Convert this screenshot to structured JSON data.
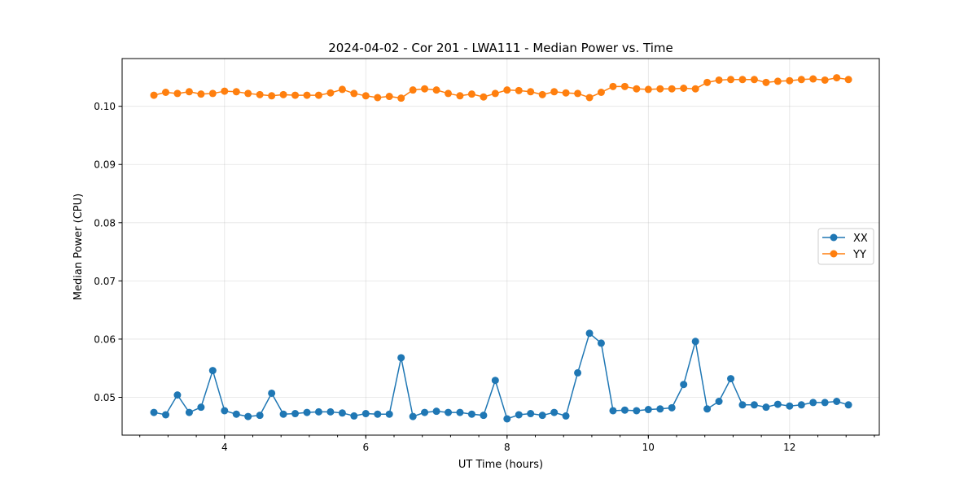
{
  "chart_data": {
    "type": "line",
    "title": "2024-04-02 - Cor 201 - LWA111 - Median Power vs. Time",
    "xlabel": "UT Time (hours)",
    "ylabel": "Median Power (CPU)",
    "xlim": [
      2.55,
      13.27
    ],
    "ylim": [
      0.0435,
      0.1082
    ],
    "xticks": [
      4,
      6,
      8,
      10,
      12
    ],
    "xtick_labels": [
      "4",
      "6",
      "8",
      "10",
      "12"
    ],
    "xminor_step": 0.4,
    "yticks": [
      0.05,
      0.06,
      0.07,
      0.08,
      0.09,
      0.1
    ],
    "ytick_labels": [
      "0.05",
      "0.06",
      "0.07",
      "0.08",
      "0.09",
      "0.10"
    ],
    "grid": true,
    "legend_position": "center-right",
    "x": [
      3.0,
      3.167,
      3.333,
      3.5,
      3.667,
      3.833,
      4.0,
      4.167,
      4.333,
      4.5,
      4.667,
      4.833,
      5.0,
      5.167,
      5.333,
      5.5,
      5.667,
      5.833,
      6.0,
      6.167,
      6.333,
      6.5,
      6.667,
      6.833,
      7.0,
      7.167,
      7.333,
      7.5,
      7.667,
      7.833,
      8.0,
      8.167,
      8.333,
      8.5,
      8.667,
      8.833,
      9.0,
      9.167,
      9.333,
      9.5,
      9.667,
      9.833,
      10.0,
      10.167,
      10.333,
      10.5,
      10.667,
      10.833,
      11.0,
      11.167,
      11.333,
      11.5,
      11.667,
      11.833,
      12.0,
      12.167,
      12.333,
      12.5,
      12.667,
      12.833
    ],
    "series": [
      {
        "name": "XX",
        "color": "#1f77b4",
        "values": [
          0.0474,
          0.047,
          0.0504,
          0.0474,
          0.0483,
          0.0546,
          0.0477,
          0.0471,
          0.0467,
          0.0469,
          0.0507,
          0.0471,
          0.0472,
          0.0474,
          0.0475,
          0.0475,
          0.0473,
          0.0468,
          0.0472,
          0.0471,
          0.0471,
          0.0568,
          0.0467,
          0.0474,
          0.0476,
          0.0474,
          0.0474,
          0.0471,
          0.0469,
          0.0529,
          0.0463,
          0.047,
          0.0472,
          0.0469,
          0.0474,
          0.0468,
          0.0542,
          0.061,
          0.0593,
          0.0477,
          0.0478,
          0.0477,
          0.0479,
          0.048,
          0.0482,
          0.0522,
          0.0596,
          0.048,
          0.0493,
          0.0532,
          0.0487,
          0.0487,
          0.0483,
          0.0488,
          0.0485,
          0.0487,
          0.0491,
          0.0491,
          0.0493,
          0.0487
        ]
      },
      {
        "name": "YY",
        "color": "#ff7f0e",
        "values": [
          0.1019,
          0.1024,
          0.1022,
          0.1025,
          0.1021,
          0.1022,
          0.1026,
          0.1025,
          0.1022,
          0.102,
          0.1018,
          0.102,
          0.1019,
          0.1019,
          0.1019,
          0.1023,
          0.1029,
          0.1022,
          0.1018,
          0.1015,
          0.1017,
          0.1014,
          0.1028,
          0.103,
          0.1028,
          0.1022,
          0.1018,
          0.1021,
          0.1016,
          0.1022,
          0.1028,
          0.1027,
          0.1025,
          0.102,
          0.1025,
          0.1023,
          0.1022,
          0.1015,
          0.1024,
          0.1034,
          0.1034,
          0.103,
          0.1029,
          0.103,
          0.103,
          0.1031,
          0.103,
          0.1041,
          0.1045,
          0.1046,
          0.1046,
          0.1046,
          0.1041,
          0.1043,
          0.1044,
          0.1046,
          0.1047,
          0.1045,
          0.1049,
          0.1046
        ]
      }
    ]
  }
}
